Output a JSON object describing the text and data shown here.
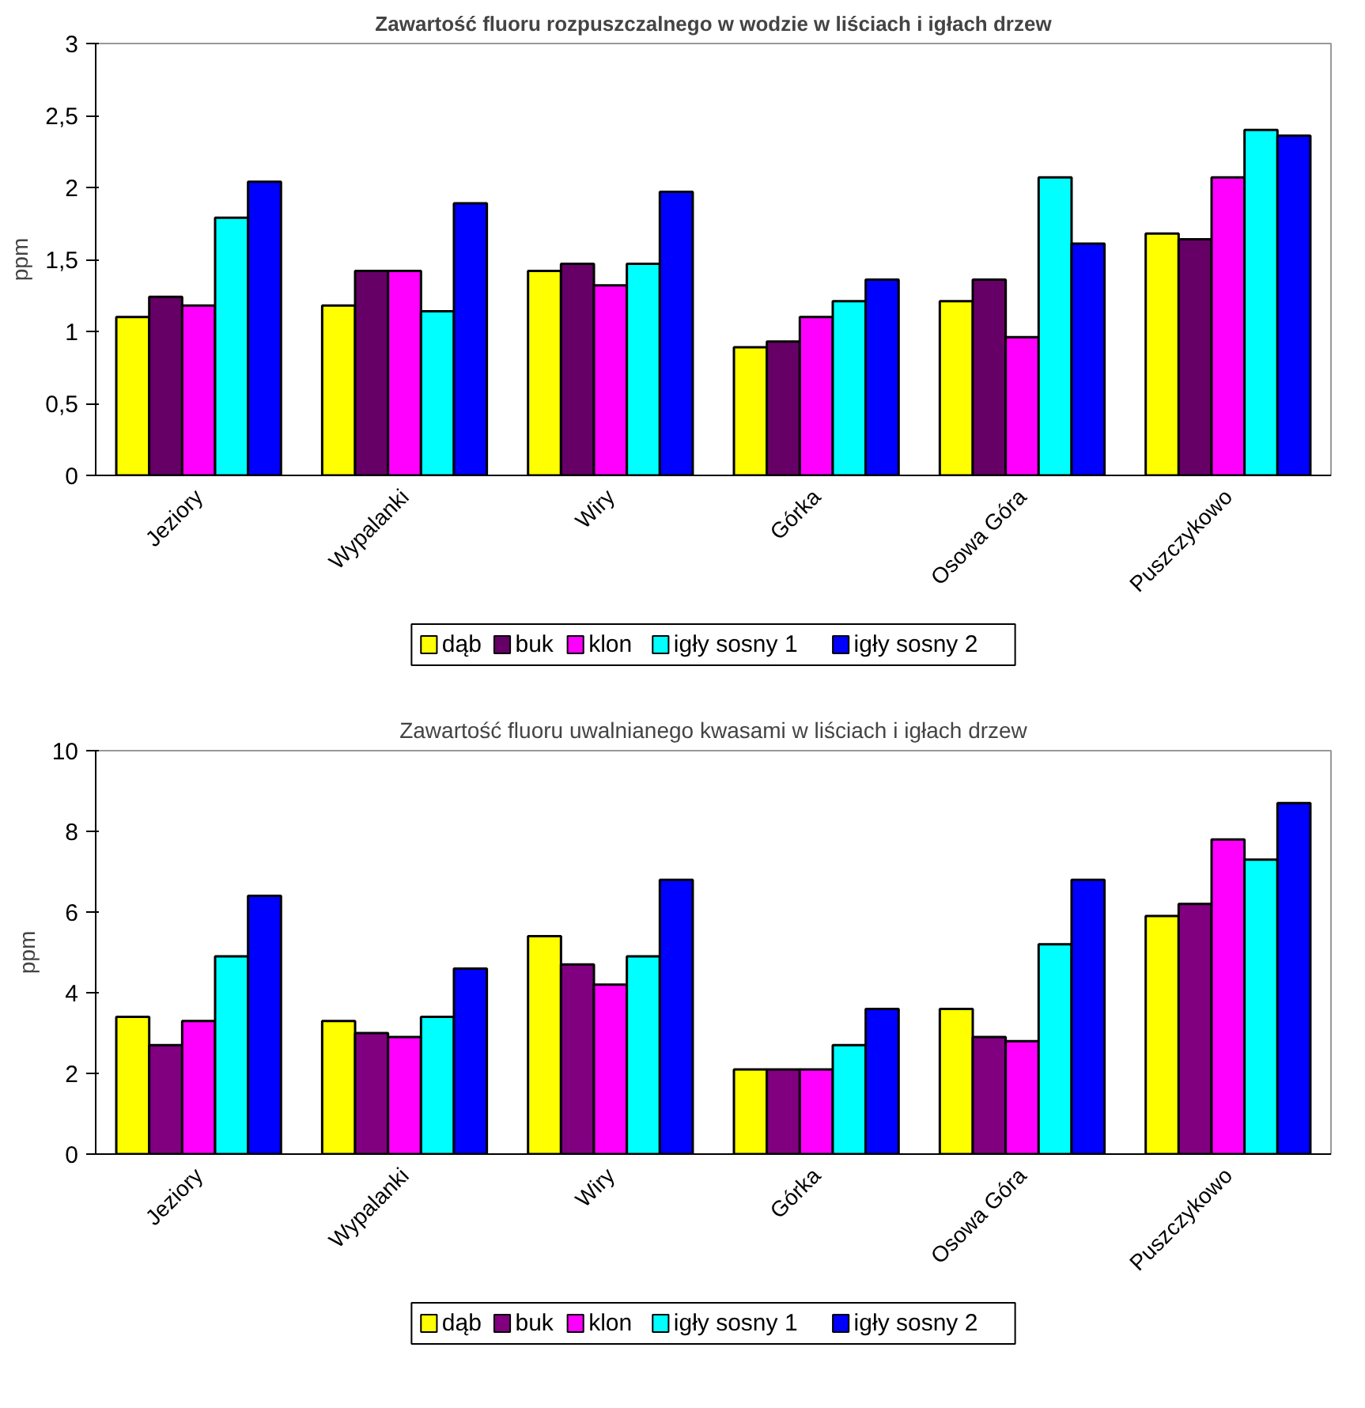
{
  "chart_data": [
    {
      "type": "bar",
      "title": "Zawartość fluoru rozpuszczalnego w wodzie w liściach i igłach drzew",
      "ylabel": "ppm",
      "categories": [
        "Jeziory",
        "Wypalanki",
        "Wiry",
        "Górka",
        "Osowa Góra",
        "Puszczykowo"
      ],
      "series": [
        {
          "name": "dąb",
          "color": "#ffff00",
          "values": [
            1.1,
            1.18,
            1.42,
            0.89,
            1.21,
            1.68
          ]
        },
        {
          "name": "buk",
          "color": "#660066",
          "values": [
            1.24,
            1.42,
            1.47,
            0.93,
            1.36,
            1.64
          ]
        },
        {
          "name": "klon",
          "color": "#ff00ff",
          "values": [
            1.18,
            1.42,
            1.32,
            1.1,
            0.96,
            2.07
          ]
        },
        {
          "name": "igły sosny 1",
          "color": "#00ffff",
          "values": [
            1.79,
            1.14,
            1.47,
            1.21,
            2.07,
            2.4
          ]
        },
        {
          "name": "igły sosny 2",
          "color": "#0000ff",
          "values": [
            2.04,
            1.89,
            1.97,
            1.36,
            1.61,
            2.36
          ]
        }
      ],
      "ylim": [
        0,
        3
      ],
      "yticks": [
        0,
        {
          "value": 0.5,
          "label": "0,5"
        },
        1,
        {
          "value": 1.5,
          "label": "1,5"
        },
        2,
        {
          "value": 2.5,
          "label": "2,5"
        },
        3
      ],
      "grid": false,
      "legend": "bottom"
    },
    {
      "type": "bar",
      "title": "Zawartość fluoru uwalnianego kwasami w liściach i igłach drzew",
      "ylabel": "ppm",
      "categories": [
        "Jeziory",
        "Wypalanki",
        "Wiry",
        "Górka",
        "Osowa Góra",
        "Puszczykowo"
      ],
      "series": [
        {
          "name": "dąb",
          "color": "#ffff00",
          "values": [
            3.4,
            3.3,
            5.4,
            2.1,
            3.6,
            5.9
          ]
        },
        {
          "name": "buk",
          "color": "#800080",
          "values": [
            2.7,
            3.0,
            4.7,
            2.1,
            2.9,
            6.2
          ]
        },
        {
          "name": "klon",
          "color": "#ff00ff",
          "values": [
            3.3,
            2.9,
            4.2,
            2.1,
            2.8,
            7.8
          ]
        },
        {
          "name": "igły sosny 1",
          "color": "#00ffff",
          "values": [
            4.9,
            3.4,
            4.9,
            2.7,
            5.2,
            7.3
          ]
        },
        {
          "name": "igły sosny 2",
          "color": "#0000ff",
          "values": [
            6.4,
            4.6,
            6.8,
            3.6,
            6.8,
            8.7
          ]
        }
      ],
      "ylim": [
        0,
        10
      ],
      "yticks": [
        0,
        2,
        4,
        6,
        8,
        10
      ],
      "grid": false,
      "legend": "bottom"
    }
  ]
}
